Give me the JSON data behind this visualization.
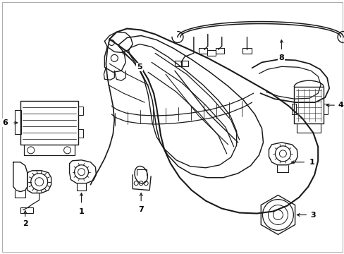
{
  "background_color": "#ffffff",
  "line_color": "#1a1a1a",
  "figsize": [
    4.89,
    3.6
  ],
  "dpi": 100,
  "border": true
}
